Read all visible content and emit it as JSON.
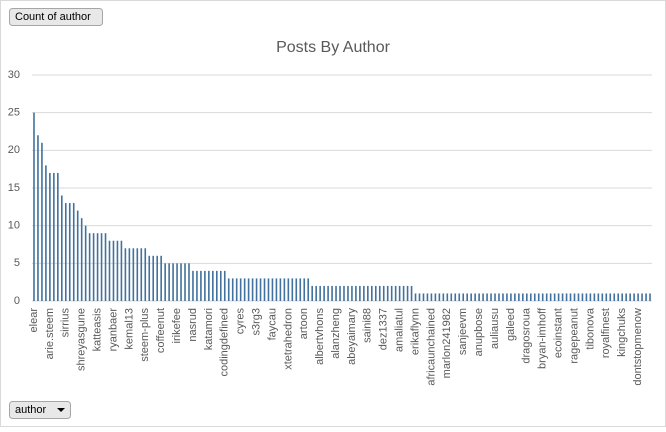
{
  "chart_data": {
    "type": "bar",
    "title": "Posts By Author",
    "value_button": "Count of author",
    "axis_button": "author",
    "categories": [
      "elear",
      null,
      null,
      null,
      "arie.steem",
      null,
      null,
      null,
      "sirrius",
      null,
      null,
      null,
      "shreyasgune",
      null,
      null,
      null,
      "katteasis",
      null,
      null,
      null,
      "ryanbaer",
      null,
      null,
      null,
      "kemal13",
      null,
      null,
      null,
      "steem-plus",
      null,
      null,
      null,
      "coffeenut",
      null,
      null,
      null,
      "irikefee",
      null,
      null,
      null,
      "nasrud",
      null,
      null,
      null,
      "katamori",
      null,
      null,
      null,
      "codingdefined",
      null,
      null,
      null,
      "cyres",
      null,
      null,
      null,
      "s3rg3",
      null,
      null,
      null,
      "faycau",
      null,
      null,
      null,
      "xtetrahedron",
      null,
      null,
      null,
      "artoon",
      null,
      null,
      null,
      "albertvhons",
      null,
      null,
      null,
      "alanzheng",
      null,
      null,
      null,
      "abeyaimary",
      null,
      null,
      null,
      "saini88",
      null,
      null,
      null,
      "dez1337",
      null,
      null,
      null,
      "amaliatul",
      null,
      null,
      null,
      "erikaflynn",
      null,
      null,
      null,
      "africaunchained",
      null,
      null,
      null,
      "marlon241982",
      null,
      null,
      null,
      "sanjeevm",
      null,
      null,
      null,
      "anupbose",
      null,
      null,
      null,
      "auliausu",
      null,
      null,
      null,
      "galeed",
      null,
      null,
      null,
      "dragosroua",
      null,
      null,
      null,
      "bryan-imhoff",
      null,
      null,
      null,
      "ecoinstant",
      null,
      null,
      null,
      "ragepeanut",
      null,
      null,
      null,
      "tibonova",
      null,
      null,
      null,
      "royalfinest",
      null,
      null,
      null,
      "kingchuks",
      null,
      null,
      null,
      "dontstopmenow",
      null,
      null,
      null
    ],
    "values": [
      25,
      22,
      21,
      18,
      17,
      17,
      17,
      14,
      13,
      13,
      13,
      12,
      11,
      10,
      9,
      9,
      9,
      9,
      9,
      8,
      8,
      8,
      8,
      7,
      7,
      7,
      7,
      7,
      7,
      6,
      6,
      6,
      6,
      5,
      5,
      5,
      5,
      5,
      5,
      5,
      4,
      4,
      4,
      4,
      4,
      4,
      4,
      4,
      4,
      3,
      3,
      3,
      3,
      3,
      3,
      3,
      3,
      3,
      3,
      3,
      3,
      3,
      3,
      3,
      3,
      3,
      3,
      3,
      3,
      3,
      2,
      2,
      2,
      2,
      2,
      2,
      2,
      2,
      2,
      2,
      2,
      2,
      2,
      2,
      2,
      2,
      2,
      2,
      2,
      2,
      2,
      2,
      2,
      2,
      2,
      2,
      1,
      1,
      1,
      1,
      1,
      1,
      1,
      1,
      1,
      1,
      1,
      1,
      1,
      1,
      1,
      1,
      1,
      1,
      1,
      1,
      1,
      1,
      1,
      1,
      1,
      1,
      1,
      1,
      1,
      1,
      1,
      1,
      1,
      1,
      1,
      1,
      1,
      1,
      1,
      1,
      1,
      1,
      1,
      1,
      1,
      1,
      1,
      1,
      1,
      1,
      1,
      1,
      1,
      1,
      1,
      1,
      1,
      1,
      1,
      1
    ],
    "color": "#41719c",
    "ylim": [
      0,
      30
    ],
    "yticks": [
      0,
      5,
      10,
      15,
      20,
      25,
      30
    ],
    "grid": true
  }
}
